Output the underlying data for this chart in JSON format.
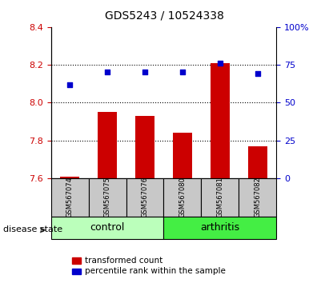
{
  "title": "GDS5243 / 10524338",
  "samples": [
    "GSM567074",
    "GSM567075",
    "GSM567076",
    "GSM567080",
    "GSM567081",
    "GSM567082"
  ],
  "red_values": [
    7.61,
    7.95,
    7.93,
    7.84,
    8.21,
    7.77
  ],
  "blue_values": [
    62,
    70,
    70,
    70,
    76,
    69
  ],
  "ylim_left": [
    7.6,
    8.4
  ],
  "ylim_right": [
    0,
    100
  ],
  "yticks_left": [
    7.6,
    7.8,
    8.0,
    8.2,
    8.4
  ],
  "yticks_right": [
    0,
    25,
    50,
    75,
    100
  ],
  "ytick_right_labels": [
    "0",
    "25",
    "50",
    "75",
    "100%"
  ],
  "bar_base": 7.6,
  "groups": [
    {
      "label": "control",
      "indices": [
        0,
        1,
        2
      ],
      "color": "#bbffbb"
    },
    {
      "label": "arthritis",
      "indices": [
        3,
        4,
        5
      ],
      "color": "#44ee44"
    }
  ],
  "disease_state_label": "disease state",
  "legend_red_label": "transformed count",
  "legend_blue_label": "percentile rank within the sample",
  "red_color": "#cc0000",
  "blue_color": "#0000cc",
  "tick_area_color": "#c8c8c8",
  "left_tick_color": "#cc0000",
  "right_tick_color": "#0000cc",
  "grid_yticks": [
    7.8,
    8.0,
    8.2
  ],
  "title_fontsize": 10,
  "tick_fontsize": 8,
  "sample_fontsize": 6,
  "legend_fontsize": 7.5,
  "group_fontsize": 9
}
